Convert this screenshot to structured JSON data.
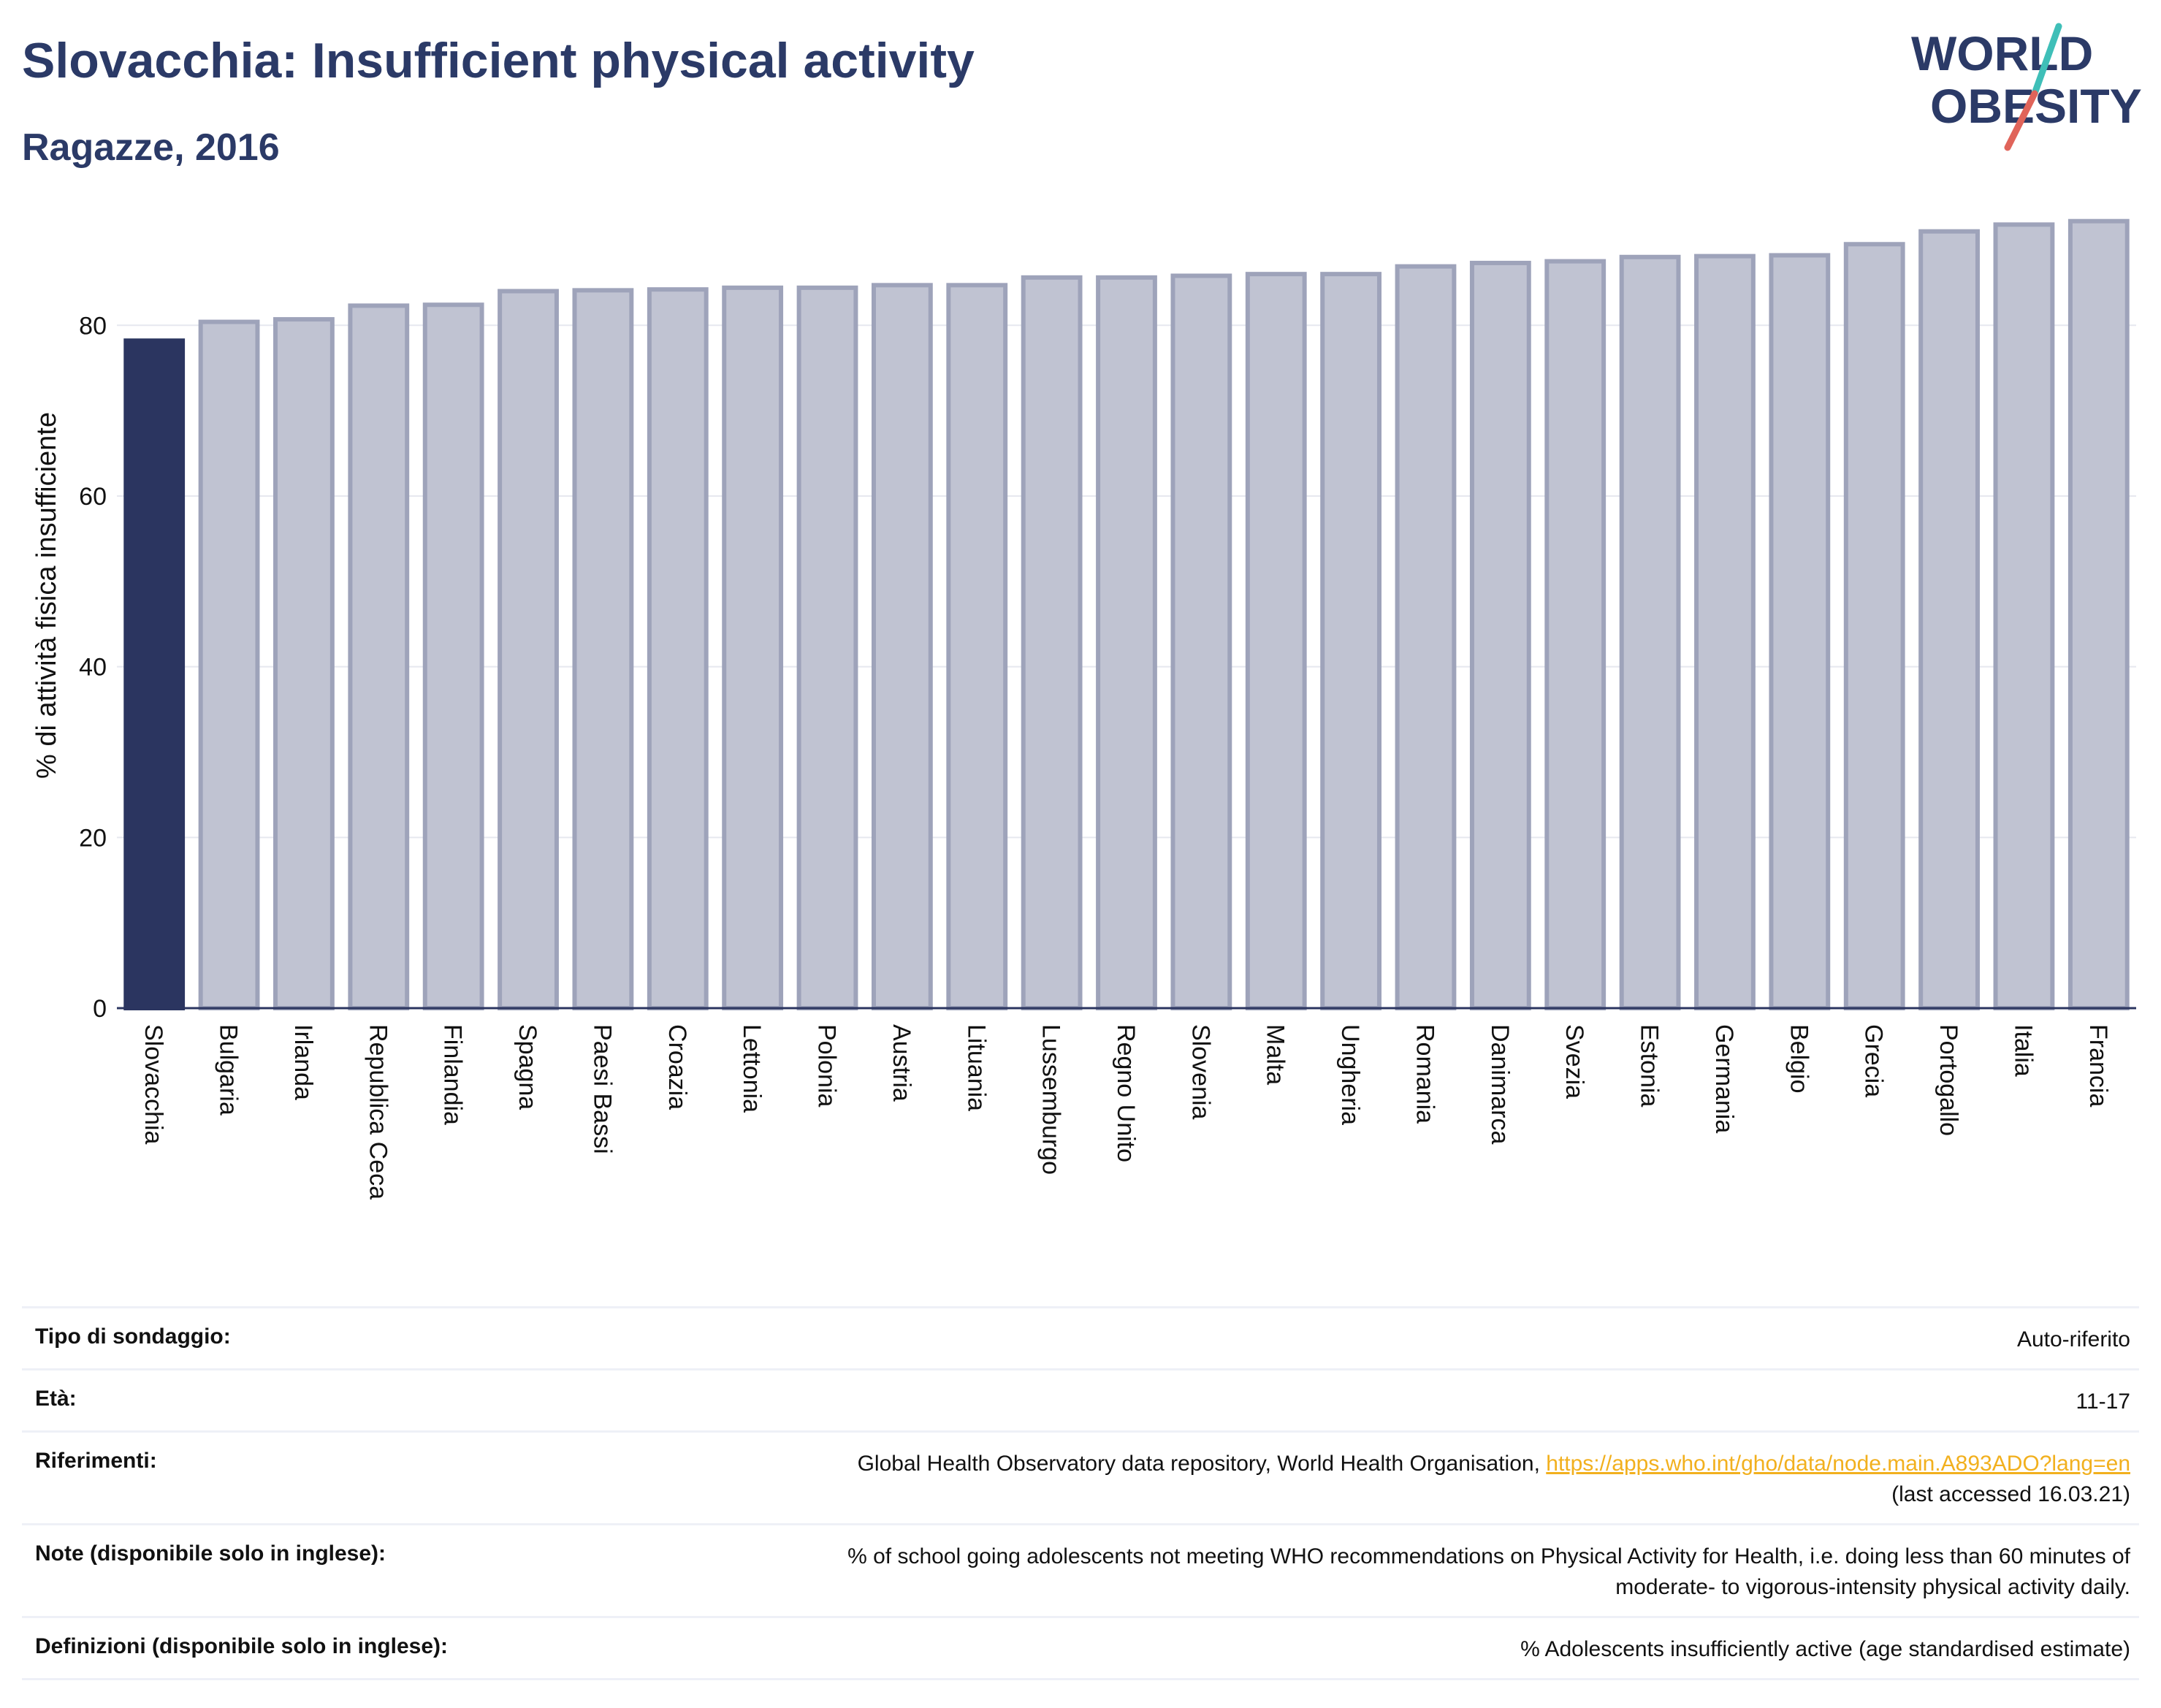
{
  "header": {
    "title": "Slovacchia: Insufficient physical activity",
    "subtitle": "Ragazze, 2016"
  },
  "logo": {
    "line1": "WORLD",
    "line2": "OBESITY"
  },
  "colors": {
    "highlight_bar": "#2b3560",
    "other_bar": "#c0c3d2",
    "other_bar_border": "#9ea3ba",
    "text_dark": "#2b3a67",
    "link": "#f2b01e",
    "logo_slash_teal": "#3fbfb8",
    "logo_slash_red": "#e0645a"
  },
  "chart_data": {
    "type": "bar",
    "ylabel": "% di attività fisica insufficiente",
    "ylim": [
      0,
      95
    ],
    "yticks": [
      0,
      20,
      40,
      60,
      80
    ],
    "grid": true,
    "highlight": "Slovacchia",
    "categories": [
      "Slovacchia",
      "Bulgaria",
      "Irlanda",
      "Republica Ceca",
      "Finlandia",
      "Spagna",
      "Paesi Bassi",
      "Croazia",
      "Lettonia",
      "Polonia",
      "Austria",
      "Lituania",
      "Lussemburgo",
      "Regno Unito",
      "Slovenia",
      "Malta",
      "Ungheria",
      "Romania",
      "Danimarca",
      "Svezia",
      "Estonia",
      "Germania",
      "Belgio",
      "Grecia",
      "Portogallo",
      "Italia",
      "Francia"
    ],
    "values": [
      78.2,
      80.4,
      80.7,
      82.3,
      82.4,
      84.0,
      84.1,
      84.2,
      84.4,
      84.4,
      84.7,
      84.7,
      85.6,
      85.6,
      85.8,
      86.0,
      86.0,
      86.9,
      87.3,
      87.5,
      88.0,
      88.1,
      88.2,
      89.5,
      91.0,
      91.8,
      92.2
    ]
  },
  "meta": {
    "survey_label": "Tipo di sondaggio:",
    "survey_value": "Auto-riferito",
    "age_label": "Età:",
    "age_value": "11-17",
    "refs_label": "Riferimenti:",
    "refs_text": "Global Health Observatory data repository, World Health Organisation, ",
    "refs_link": "https://apps.who.int/gho/data/node.main.A893ADO?lang=en",
    "refs_accessed": "(last accessed 16.03.21)",
    "notes_label": "Note (disponibile solo in inglese):",
    "notes_line1": "% of school going adolescents not meeting WHO recommendations on Physical Activity for Health, i.e. doing less than 60 minutes of",
    "notes_line2": "moderate- to vigorous-intensity physical activity daily.",
    "defs_label": "Definizioni (disponibile solo in inglese):",
    "defs_value": "% Adolescents insufficiently active (age standardised estimate)"
  }
}
